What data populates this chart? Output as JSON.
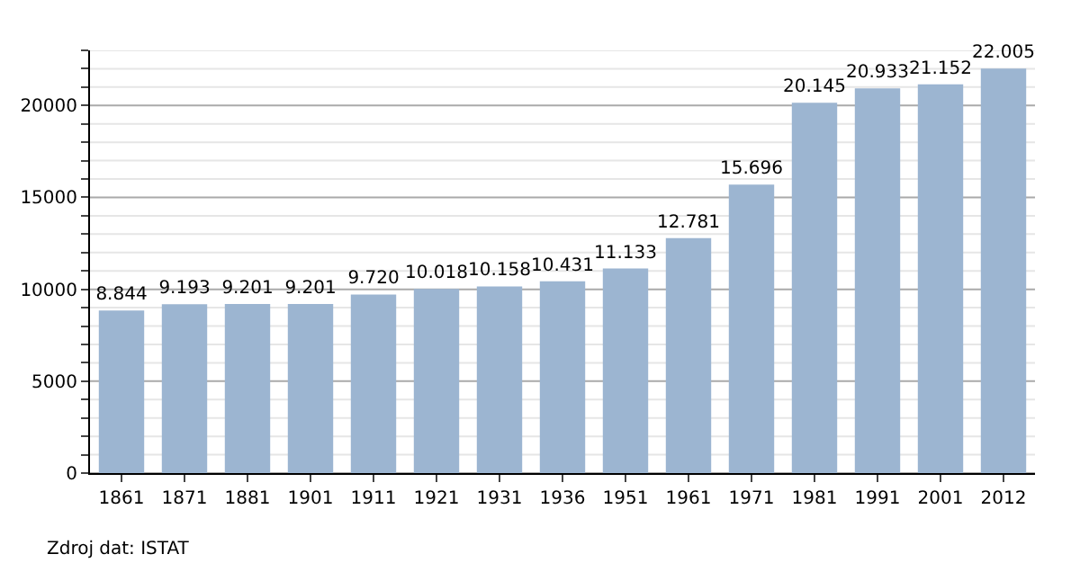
{
  "chart_data": {
    "type": "bar",
    "categories": [
      "1861",
      "1871",
      "1881",
      "1901",
      "1911",
      "1921",
      "1931",
      "1936",
      "1951",
      "1961",
      "1971",
      "1981",
      "1991",
      "2001",
      "2012"
    ],
    "values": [
      8844,
      9193,
      9201,
      9201,
      9720,
      10018,
      10158,
      10431,
      11133,
      12781,
      15696,
      20145,
      20933,
      21152,
      22005
    ],
    "value_labels": [
      "8.844",
      "9.193",
      "9.201",
      "9.201",
      "9.720",
      "10.018",
      "10.158",
      "10.431",
      "11.133",
      "12.781",
      "15.696",
      "20.145",
      "20.933",
      "21.152",
      "22.005"
    ],
    "color": "#9cb5d1",
    "ylim": [
      0,
      23000
    ],
    "yticks": [
      0,
      {
        "value": 1000,
        "label": null
      },
      {
        "value": 2000,
        "label": null
      },
      {
        "value": 3000,
        "label": null
      },
      {
        "value": 4000,
        "label": null
      },
      5000,
      {
        "value": 6000,
        "label": null
      },
      {
        "value": 7000,
        "label": null
      },
      {
        "value": 8000,
        "label": null
      },
      {
        "value": 9000,
        "label": null
      },
      10000,
      {
        "value": 11000,
        "label": null
      },
      {
        "value": 12000,
        "label": null
      },
      {
        "value": 13000,
        "label": null
      },
      {
        "value": 14000,
        "label": null
      },
      15000,
      {
        "value": 16000,
        "label": null
      },
      {
        "value": 17000,
        "label": null
      },
      {
        "value": 18000,
        "label": null
      },
      {
        "value": 19000,
        "label": null
      },
      20000,
      {
        "value": 21000,
        "label": null
      },
      {
        "value": 22000,
        "label": null
      },
      {
        "value": 23000,
        "label": null
      }
    ],
    "grid": "y",
    "annotations": [
      "Zdroj dat: ISTAT"
    ]
  }
}
